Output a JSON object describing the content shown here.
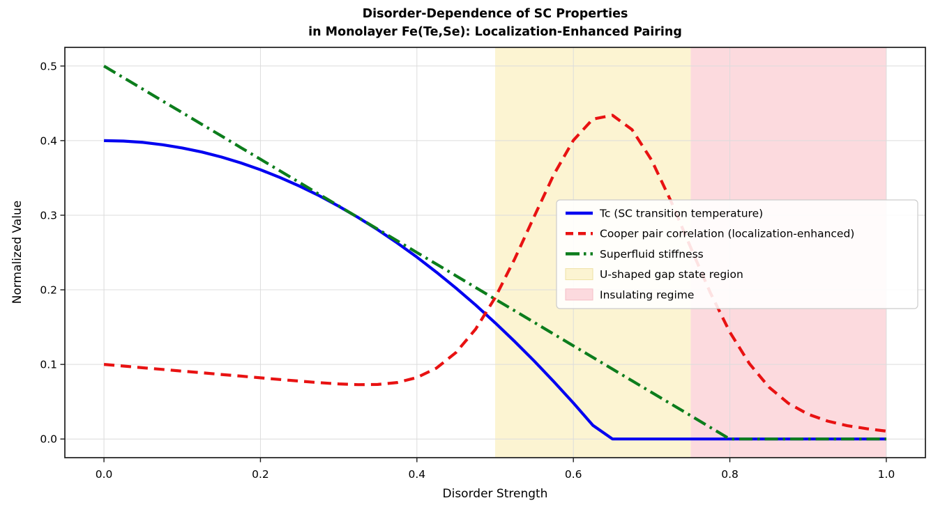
{
  "chart_data": {
    "type": "line",
    "title_line1": "Disorder-Dependence of SC Properties",
    "title_line2": "in Monolayer Fe(Te,Se): Localization-Enhanced Pairing",
    "xlabel": "Disorder Strength",
    "ylabel": "Normalized Value",
    "xlim": [
      -0.05,
      1.05
    ],
    "ylim": [
      -0.025,
      0.525
    ],
    "x_ticks": [
      0.0,
      0.2,
      0.4,
      0.6,
      0.8,
      1.0
    ],
    "y_ticks": [
      0.0,
      0.1,
      0.2,
      0.3,
      0.4,
      0.5
    ],
    "grid": true,
    "background": "#ffffff",
    "grid_color": "#dcdcdc",
    "frame_color": "#1c1c1c",
    "text_color": "#000000",
    "x": [
      0,
      0.025,
      0.05,
      0.075,
      0.1,
      0.125,
      0.15,
      0.175,
      0.2,
      0.225,
      0.25,
      0.275,
      0.3,
      0.325,
      0.35,
      0.375,
      0.4,
      0.425,
      0.45,
      0.475,
      0.5,
      0.525,
      0.55,
      0.575,
      0.6,
      0.625,
      0.65,
      0.675,
      0.7,
      0.725,
      0.75,
      0.775,
      0.8,
      0.825,
      0.85,
      0.875,
      0.9,
      0.925,
      0.95,
      0.975,
      1
    ],
    "series": [
      {
        "name": "Tc (SC transition temperature)",
        "color": "#0202f0",
        "style": "solid",
        "values": [
          0.4,
          0.3994,
          0.3976,
          0.3945,
          0.3902,
          0.3847,
          0.378,
          0.3701,
          0.3609,
          0.3506,
          0.339,
          0.3262,
          0.3121,
          0.2969,
          0.2804,
          0.2627,
          0.2438,
          0.2236,
          0.2023,
          0.1797,
          0.1558,
          0.1308,
          0.1045,
          0.077,
          0.0483,
          0.0183,
          0,
          0,
          0,
          0,
          0,
          0,
          0,
          0,
          0,
          0,
          0,
          0,
          0,
          0,
          0
        ]
      },
      {
        "name": "Cooper pair correlation (localization-enhanced)",
        "color": "#e81212",
        "style": "dashed",
        "values": [
          0.1,
          0.0978,
          0.0955,
          0.0933,
          0.091,
          0.0888,
          0.0865,
          0.0843,
          0.082,
          0.0798,
          0.0776,
          0.0756,
          0.0739,
          0.0729,
          0.0731,
          0.0758,
          0.0824,
          0.0951,
          0.116,
          0.1473,
          0.1895,
          0.2413,
          0.2985,
          0.3544,
          0.4004,
          0.4289,
          0.434,
          0.4147,
          0.3738,
          0.3183,
          0.2564,
          0.1962,
          0.1434,
          0.1011,
          0.0696,
          0.0477,
          0.0333,
          0.024,
          0.0179,
          0.0138,
          0.0106
        ]
      },
      {
        "name": "Superfluid stiffness",
        "color": "#0c7d1c",
        "style": "dashdot",
        "values": [
          0.5,
          0.4844,
          0.4688,
          0.4531,
          0.4375,
          0.4219,
          0.4063,
          0.3906,
          0.375,
          0.3594,
          0.3438,
          0.3281,
          0.3125,
          0.2969,
          0.2813,
          0.2656,
          0.25,
          0.2344,
          0.2188,
          0.2031,
          0.1875,
          0.1719,
          0.1563,
          0.1406,
          0.125,
          0.1094,
          0.0938,
          0.0781,
          0.0625,
          0.0469,
          0.0313,
          0.0156,
          0,
          0,
          0,
          0,
          0,
          0,
          0,
          0,
          0
        ]
      }
    ],
    "regions": [
      {
        "label": "U-shaped gap state region",
        "x_start": 0.5,
        "x_end": 0.75,
        "fill": "#fcf4d2",
        "edge": "#eee2a4"
      },
      {
        "label": "Insulating regime",
        "x_start": 0.75,
        "x_end": 1.0,
        "fill": "#fcdade",
        "edge": "#f5bec6"
      }
    ],
    "legend": {
      "position": "center right",
      "background": "#ffffff",
      "border_color": "#cccccc"
    }
  }
}
